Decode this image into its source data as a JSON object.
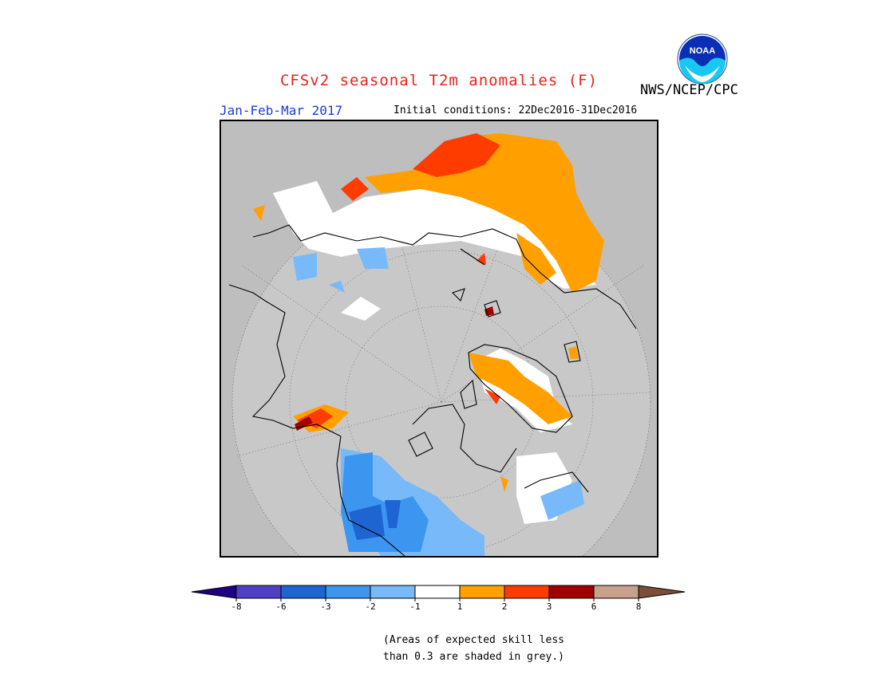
{
  "title": "CFSv2 seasonal T2m anomalies (F)",
  "agency": "NWS/NCEP/CPC",
  "logo_text": "NOAA",
  "period": "Jan-Feb-Mar 2017",
  "initial_conditions": "Initial conditions: 22Dec2016-31Dec2016",
  "map": {
    "projection": "north-polar stereographic",
    "background_color": "#bebebe",
    "disk_color": "#c8c8c8"
  },
  "colorbar": {
    "bins": [
      {
        "color": "#1e0082"
      },
      {
        "color": "#5040c8"
      },
      {
        "color": "#1e64d2"
      },
      {
        "color": "#3c96f0"
      },
      {
        "color": "#78b9fa"
      },
      {
        "color": "#ffffff"
      },
      {
        "color": "#ffa000"
      },
      {
        "color": "#ff3c00"
      },
      {
        "color": "#a00000"
      },
      {
        "color": "#c8a08c"
      },
      {
        "color": "#7a4e38"
      }
    ],
    "tick_labels": [
      "-8",
      "-6",
      "-3",
      "-2",
      "-1",
      "1",
      "2",
      "3",
      "6",
      "8"
    ]
  },
  "note_line1": "(Areas of expected skill less",
  "note_line2": "than 0.3 are shaded in grey.)"
}
